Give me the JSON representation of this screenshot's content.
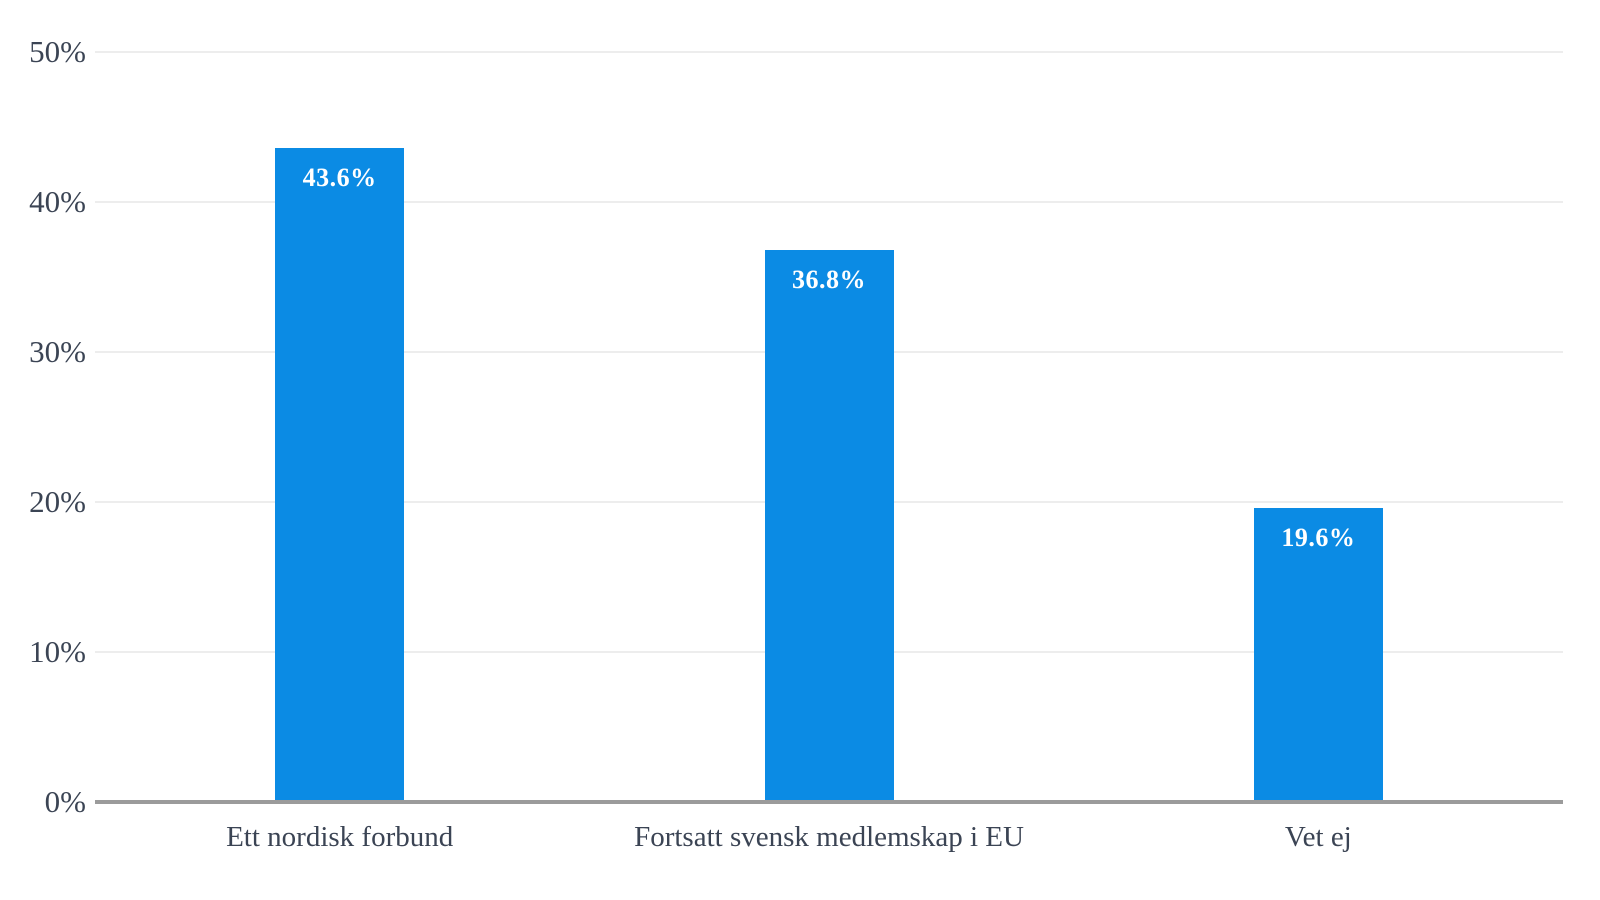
{
  "chart_data": {
    "type": "bar",
    "title": "",
    "xlabel": "",
    "ylabel": "",
    "categories": [
      "Ett nordisk forbund",
      "Fortsatt svensk medlemskap i EU",
      "Vet ej"
    ],
    "values": [
      43.6,
      36.8,
      19.6
    ],
    "bar_labels": [
      "43.6%",
      "36.8%",
      "19.6%"
    ],
    "ylim": [
      0,
      50
    ],
    "yticks": [
      0,
      10,
      20,
      30,
      40,
      50
    ],
    "ytick_labels": [
      "0%",
      "10%",
      "20%",
      "30%",
      "40%",
      "50%"
    ],
    "grid": "horizontal",
    "legend_position": "none",
    "colors": {
      "bar_fill": "#0b8be4",
      "bar_value_label": "#ffffff",
      "tick_text": "#3b4454",
      "gridline": "#ededed",
      "axis_line": "#9b9b9b",
      "background": "#ffffff"
    }
  }
}
